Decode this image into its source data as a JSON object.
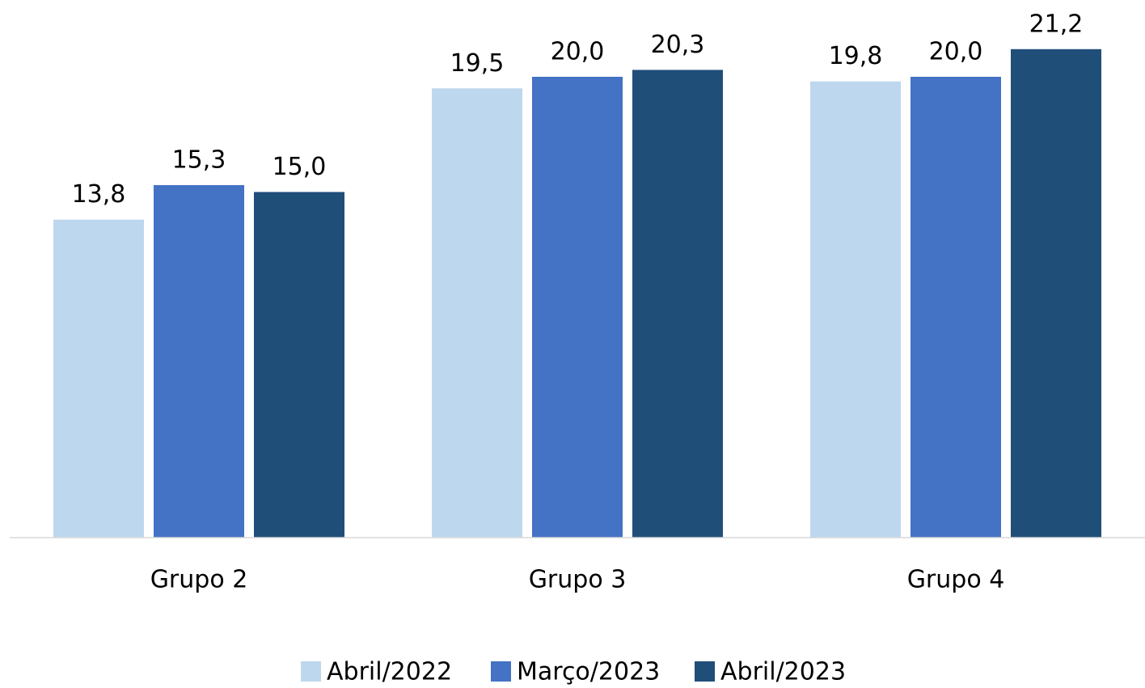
{
  "chart_data": {
    "type": "bar",
    "categories": [
      "Grupo 2",
      "Grupo 3",
      "Grupo 4"
    ],
    "series": [
      {
        "name": "Abril/2022",
        "color": "#bdd7ee",
        "values": [
          13.8,
          19.5,
          19.8
        ],
        "value_labels": [
          "13,8",
          "19,5",
          "19,8"
        ]
      },
      {
        "name": "Março/2023",
        "color": "#4472c4",
        "values": [
          15.3,
          20.0,
          20.0
        ],
        "value_labels": [
          "15,3",
          "20,0",
          "20,0"
        ]
      },
      {
        "name": "Abril/2023",
        "color": "#1f4e79",
        "values": [
          15.0,
          20.3,
          21.2
        ],
        "value_labels": [
          "15,0",
          "20,3",
          "21,2"
        ]
      }
    ],
    "ylim": [
      0,
      22
    ],
    "grid": false,
    "legend": "bottom"
  }
}
